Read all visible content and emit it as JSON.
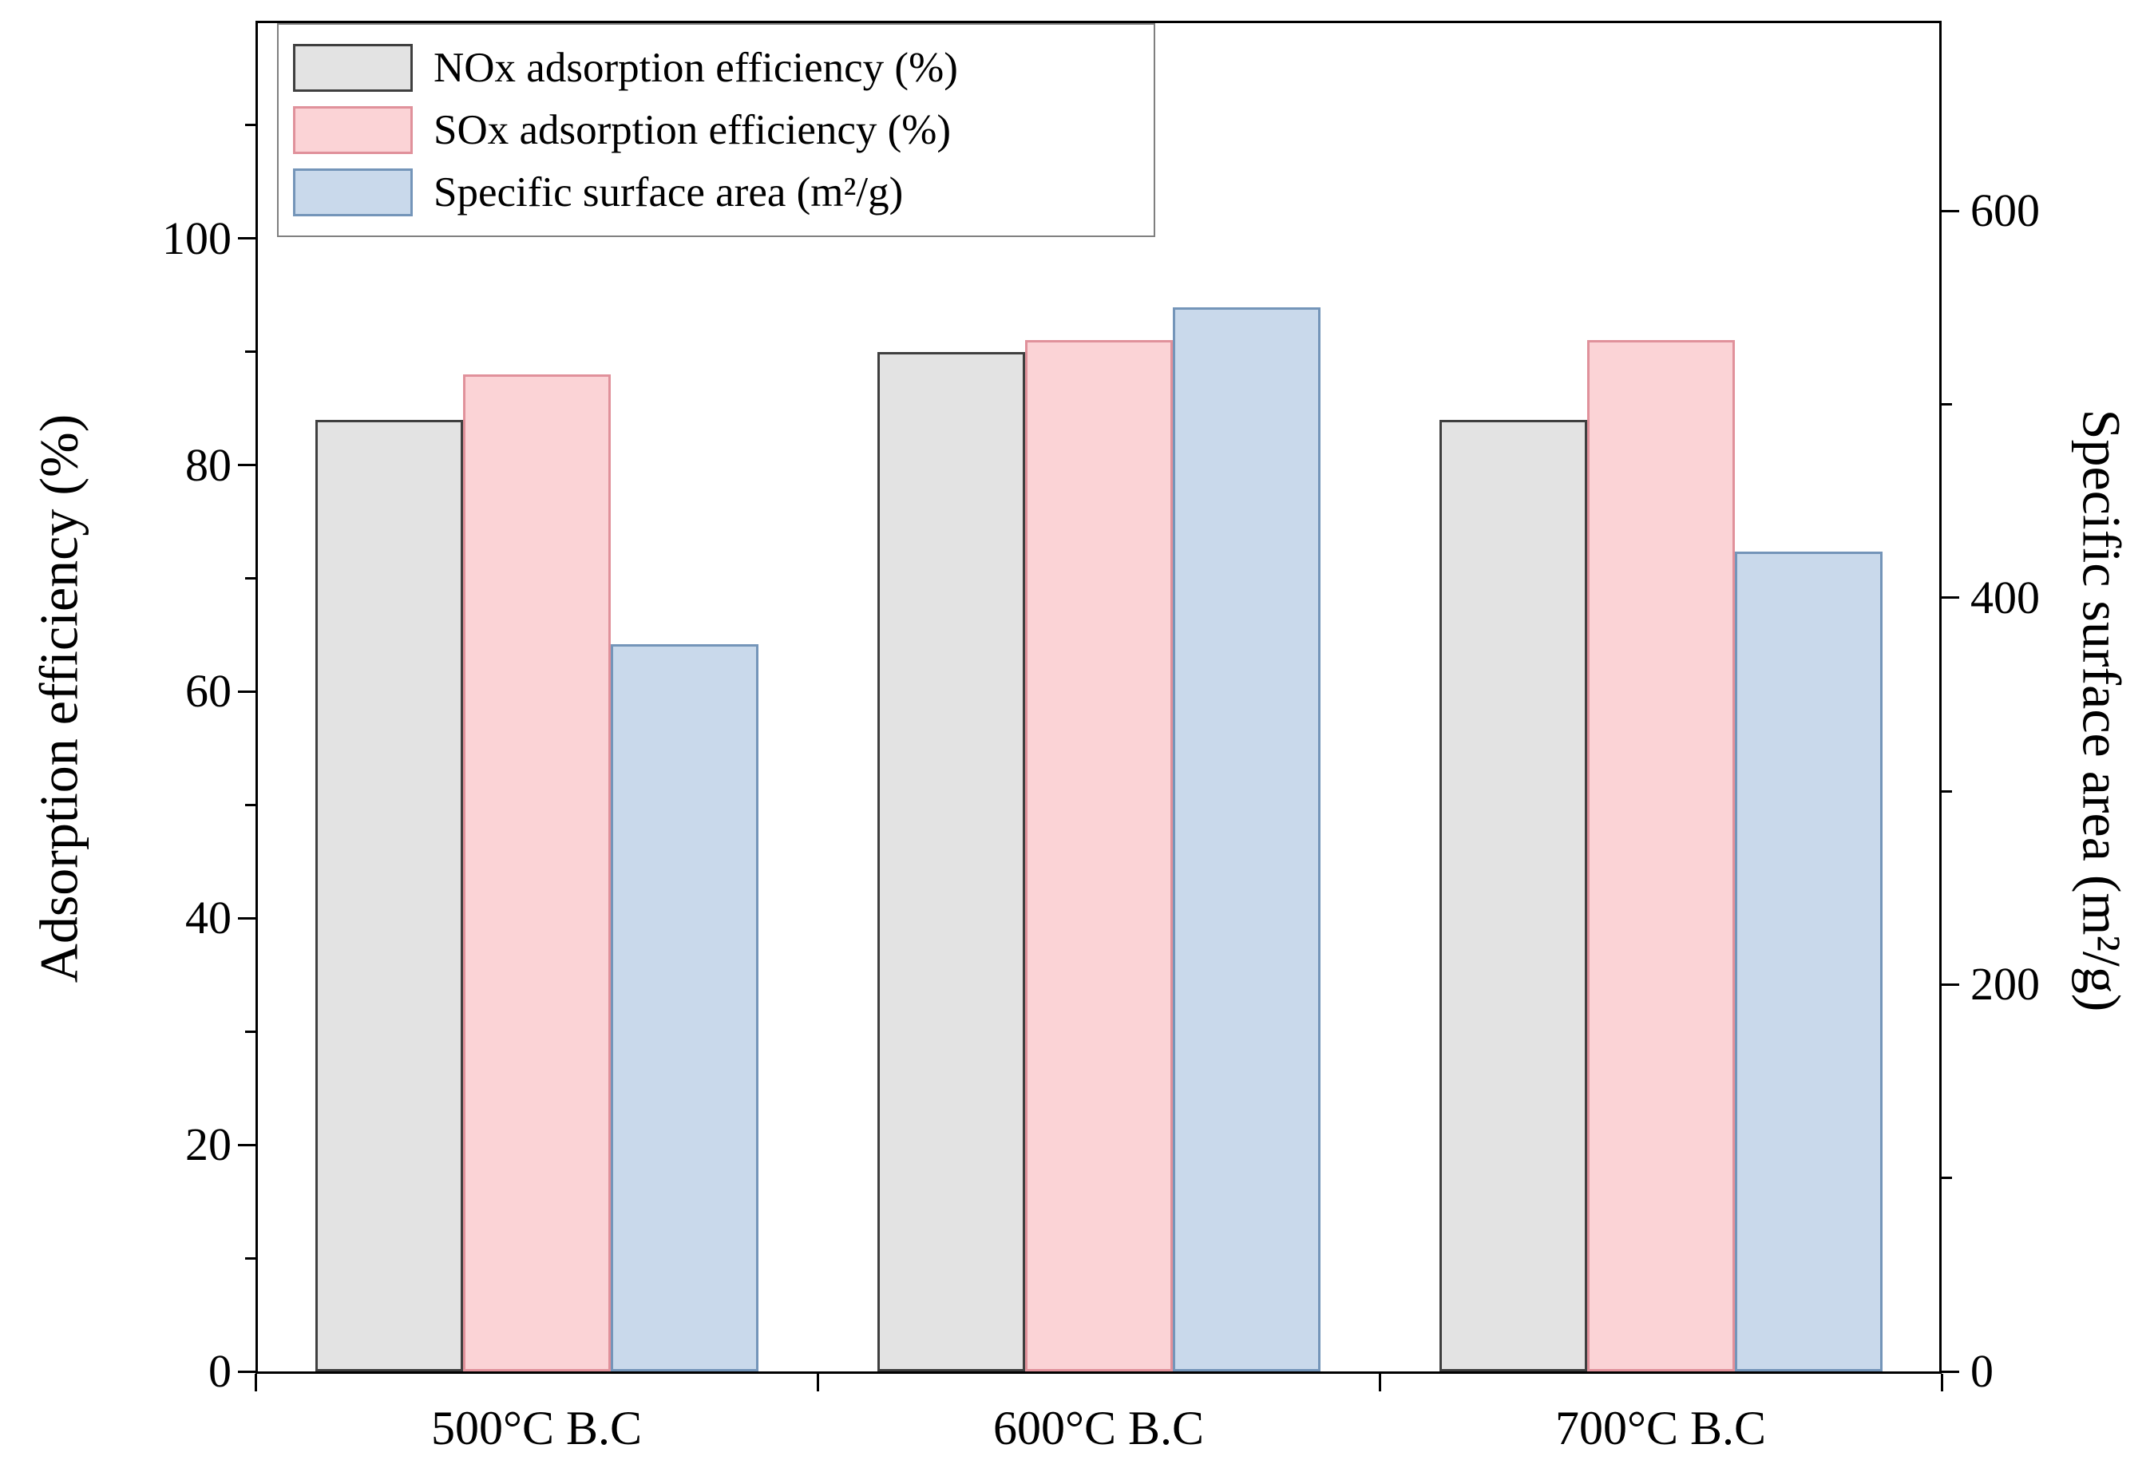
{
  "chart_data": {
    "type": "bar",
    "title": "",
    "categories": [
      "500°C B.C",
      "600°C B.C",
      "700°C B.C"
    ],
    "series": [
      {
        "name": "NOx adsorption efficiency (%)",
        "axis": "left",
        "values": [
          84,
          90,
          84
        ],
        "fill": "#e3e3e3",
        "border": "#3f3f3f"
      },
      {
        "name": "SOx adsorption efficiency (%)",
        "axis": "left",
        "values": [
          88,
          91,
          91
        ],
        "fill": "#fbd3d6",
        "border": "#e0919b"
      },
      {
        "name": "Specific surface area (m²/g)",
        "axis": "right",
        "values": [
          376,
          550,
          424
        ],
        "fill": "#c9d9eb",
        "border": "#7495b9"
      }
    ],
    "ylabel_left": "Adsorption efficiency (%)",
    "ylabel_right": "Specific surface area (m²/g)",
    "left_axis": {
      "ticks": [
        0,
        20,
        40,
        60,
        80,
        100
      ],
      "minor_step": 10,
      "top": 119
    },
    "right_axis": {
      "ticks": [
        0,
        200,
        400,
        600
      ],
      "minor_step": 100,
      "top": 697
    },
    "legend_position": "top-left",
    "grid": false
  }
}
